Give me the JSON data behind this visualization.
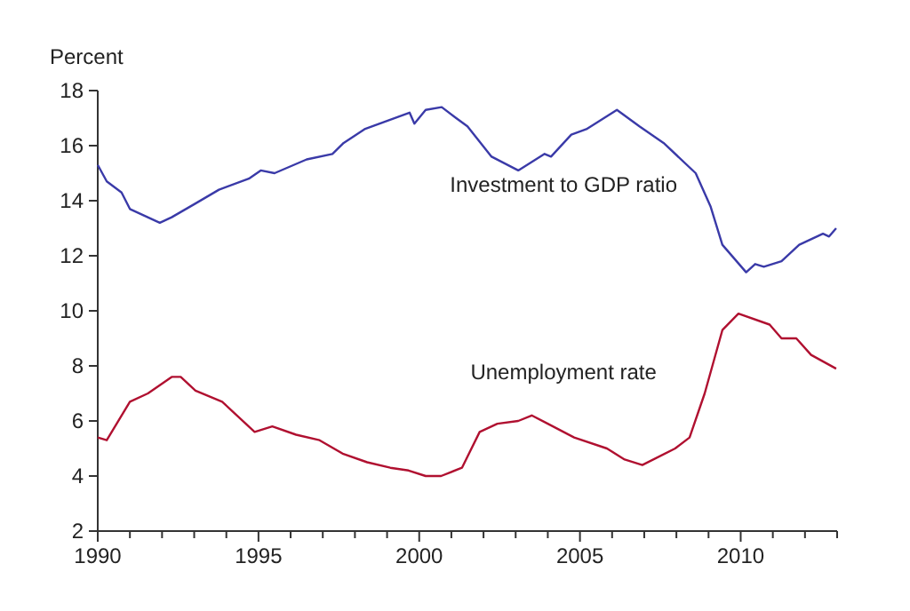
{
  "chart_data": {
    "type": "line",
    "ylabel": "Percent",
    "xlim": [
      1990,
      2013
    ],
    "ylim": [
      2,
      18
    ],
    "xticks": [
      1990,
      {
        "value": 1991,
        "label": null
      },
      {
        "value": 1992,
        "label": null
      },
      {
        "value": 1993,
        "label": null
      },
      {
        "value": 1994,
        "label": null
      },
      1995,
      {
        "value": 1996,
        "label": null
      },
      {
        "value": 1997,
        "label": null
      },
      {
        "value": 1998,
        "label": null
      },
      {
        "value": 1999,
        "label": null
      },
      2000,
      {
        "value": 2001,
        "label": null
      },
      {
        "value": 2002,
        "label": null
      },
      {
        "value": 2003,
        "label": null
      },
      {
        "value": 2004,
        "label": null
      },
      2005,
      {
        "value": 2006,
        "label": null
      },
      {
        "value": 2007,
        "label": null
      },
      {
        "value": 2008,
        "label": null
      },
      {
        "value": 2009,
        "label": null
      },
      2010,
      {
        "value": 2011,
        "label": null
      },
      {
        "value": 2012,
        "label": null
      },
      {
        "value": 2013,
        "label": null
      }
    ],
    "yticks": [
      2,
      4,
      6,
      8,
      10,
      12,
      14,
      16,
      18
    ],
    "grid": false,
    "legend": false,
    "marker": "none",
    "line_style": "solid",
    "series": [
      {
        "name": "Investment to GDP ratio",
        "color": "#3a3aa8",
        "x": [
          1990.0,
          1990.28,
          1990.74,
          1991.0,
          1991.93,
          1992.3,
          1993.04,
          1993.77,
          1994.7,
          1995.07,
          1995.5,
          1996.5,
          1997.3,
          1997.65,
          1998.3,
          1999.7,
          1999.85,
          2000.2,
          2000.7,
          2001.15,
          2001.5,
          2002.25,
          2003.08,
          2003.9,
          2004.1,
          2004.73,
          2005.2,
          2006.15,
          2006.85,
          2007.6,
          2008.6,
          2009.06,
          2009.43,
          2010.17,
          2010.45,
          2010.72,
          2011.27,
          2011.82,
          2012.56,
          2012.75,
          2012.97
        ],
        "values": [
          15.3,
          14.7,
          14.3,
          13.7,
          13.2,
          13.4,
          13.9,
          14.4,
          14.8,
          15.1,
          15.0,
          15.5,
          15.7,
          16.1,
          16.6,
          17.2,
          16.8,
          17.3,
          17.4,
          17.0,
          16.7,
          15.6,
          15.1,
          15.7,
          15.6,
          16.4,
          16.6,
          17.3,
          16.7,
          16.1,
          15.0,
          13.8,
          12.4,
          11.4,
          11.7,
          11.6,
          11.8,
          12.4,
          12.8,
          12.7,
          13.0
        ]
      },
      {
        "name": "Unemployment rate",
        "color": "#b01030",
        "x": [
          1990.0,
          1990.28,
          1991.0,
          1991.56,
          1992.3,
          1992.58,
          1993.04,
          1993.87,
          1994.33,
          1994.88,
          1995.43,
          1996.17,
          1996.9,
          1997.64,
          1998.38,
          1999.1,
          1999.67,
          2000.2,
          2000.68,
          2001.33,
          2001.88,
          2002.43,
          2003.08,
          2003.5,
          2004.0,
          2004.82,
          2005.84,
          2006.39,
          2006.94,
          2007.96,
          2008.41,
          2008.88,
          2009.43,
          2009.93,
          2010.9,
          2011.27,
          2011.73,
          2012.19,
          2012.97
        ],
        "values": [
          5.4,
          5.3,
          6.7,
          7.0,
          7.6,
          7.6,
          7.1,
          6.7,
          6.2,
          5.6,
          5.8,
          5.5,
          5.3,
          4.8,
          4.5,
          4.3,
          4.2,
          4.0,
          4.0,
          4.3,
          5.6,
          5.9,
          6.0,
          6.2,
          5.9,
          5.4,
          5.0,
          4.6,
          4.4,
          5.0,
          5.4,
          7.0,
          9.3,
          9.9,
          9.5,
          9.0,
          9.0,
          8.4,
          7.9
        ]
      }
    ]
  }
}
